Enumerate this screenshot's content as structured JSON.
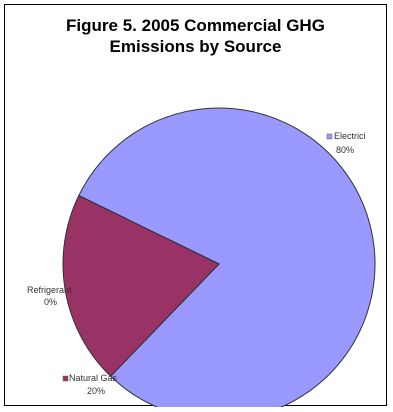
{
  "chart_data": {
    "type": "pie",
    "title_line1": "Figure 5. 2005 Commercial GHG",
    "title_line2": "Emissions by Source",
    "slices": [
      {
        "label": "Electrici",
        "pct_label": "80%",
        "value": 80,
        "color": "#9999ff"
      },
      {
        "label": "Natural Gas",
        "pct_label": "20%",
        "value": 20,
        "color": "#993366"
      },
      {
        "label": "Refrigerant",
        "pct_label": "0%",
        "value": 0,
        "color": "#ffffcc"
      }
    ],
    "legend": "inline labels"
  }
}
